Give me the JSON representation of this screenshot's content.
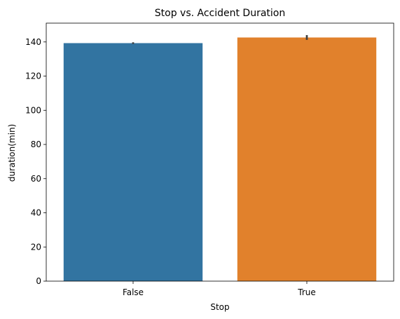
{
  "chart_data": {
    "type": "bar",
    "title": "Stop vs. Accident Duration",
    "xlabel": "Stop",
    "ylabel": "duration(min)",
    "categories": [
      "False",
      "True"
    ],
    "values": [
      139.3,
      142.6
    ],
    "error_bars": [
      [
        138.8,
        139.8
      ],
      [
        141.2,
        144.0
      ]
    ],
    "colors": [
      "#3274a1",
      "#e1812c"
    ],
    "errorbar_color": "#3f3f3f",
    "ylim": [
      0,
      151
    ],
    "yticks": [
      0,
      20,
      40,
      60,
      80,
      100,
      120,
      140
    ],
    "grid": false,
    "legend": "none"
  }
}
